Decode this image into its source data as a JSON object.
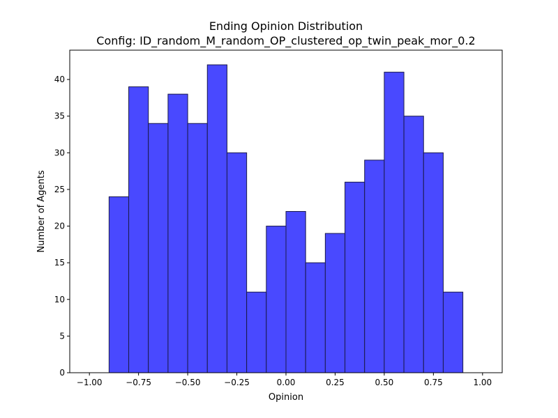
{
  "chart_data": {
    "type": "bar",
    "title": "Ending Opinion Distribution",
    "subtitle": "Config: ID_random_M_random_OP_clustered_op_twin_peak_mor_0.2",
    "xlabel": "Opinion",
    "ylabel": "Number of Agents",
    "xlim": [
      -1.1,
      1.1
    ],
    "ylim": [
      0,
      44
    ],
    "grid": false,
    "bar_color": "#4949FF",
    "edge_color": "#1a1a4a",
    "bin_width": 0.1,
    "bins": [
      {
        "x0": -0.9,
        "x1": -0.8,
        "count": 24
      },
      {
        "x0": -0.8,
        "x1": -0.7,
        "count": 39
      },
      {
        "x0": -0.7,
        "x1": -0.6,
        "count": 34
      },
      {
        "x0": -0.6,
        "x1": -0.5,
        "count": 38
      },
      {
        "x0": -0.5,
        "x1": -0.4,
        "count": 34
      },
      {
        "x0": -0.4,
        "x1": -0.3,
        "count": 42
      },
      {
        "x0": -0.3,
        "x1": -0.2,
        "count": 30
      },
      {
        "x0": -0.2,
        "x1": -0.1,
        "count": 11
      },
      {
        "x0": -0.1,
        "x1": 0.0,
        "count": 20
      },
      {
        "x0": 0.0,
        "x1": 0.1,
        "count": 22
      },
      {
        "x0": 0.1,
        "x1": 0.2,
        "count": 15
      },
      {
        "x0": 0.2,
        "x1": 0.3,
        "count": 19
      },
      {
        "x0": 0.3,
        "x1": 0.4,
        "count": 26
      },
      {
        "x0": 0.4,
        "x1": 0.5,
        "count": 29
      },
      {
        "x0": 0.5,
        "x1": 0.6,
        "count": 41
      },
      {
        "x0": 0.6,
        "x1": 0.7,
        "count": 35
      },
      {
        "x0": 0.7,
        "x1": 0.8,
        "count": 30
      },
      {
        "x0": 0.8,
        "x1": 0.9,
        "count": 11
      }
    ],
    "x_ticks": [
      {
        "value": -1.0,
        "label": "−1.00"
      },
      {
        "value": -0.75,
        "label": "−0.75"
      },
      {
        "value": -0.5,
        "label": "−0.50"
      },
      {
        "value": -0.25,
        "label": "−0.25"
      },
      {
        "value": 0.0,
        "label": "0.00"
      },
      {
        "value": 0.25,
        "label": "0.25"
      },
      {
        "value": 0.5,
        "label": "0.50"
      },
      {
        "value": 0.75,
        "label": "0.75"
      },
      {
        "value": 1.0,
        "label": "1.00"
      }
    ],
    "y_ticks": [
      {
        "value": 0,
        "label": "0"
      },
      {
        "value": 5,
        "label": "5"
      },
      {
        "value": 10,
        "label": "10"
      },
      {
        "value": 15,
        "label": "15"
      },
      {
        "value": 20,
        "label": "20"
      },
      {
        "value": 25,
        "label": "25"
      },
      {
        "value": 30,
        "label": "30"
      },
      {
        "value": 35,
        "label": "35"
      },
      {
        "value": 40,
        "label": "40"
      }
    ]
  }
}
